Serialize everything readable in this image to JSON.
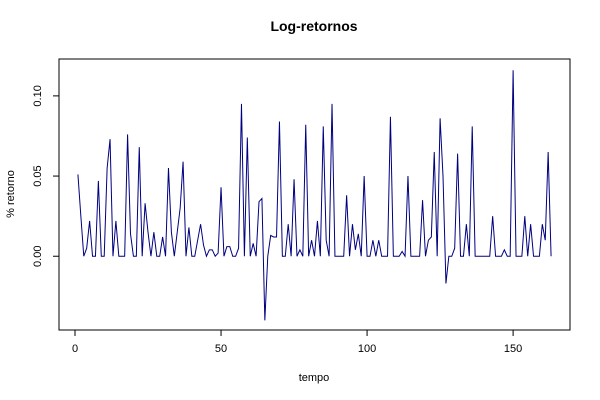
{
  "chart_data": {
    "type": "line",
    "title": "Log-retornos",
    "xlabel": "tempo",
    "ylabel": "% retorno",
    "color": "#000080",
    "x": [
      1,
      2,
      3,
      4,
      5,
      6,
      7,
      8,
      9,
      10,
      11,
      12,
      13,
      14,
      15,
      16,
      17,
      18,
      19,
      20,
      21,
      22,
      23,
      24,
      25,
      26,
      27,
      28,
      29,
      30,
      31,
      32,
      33,
      34,
      35,
      36,
      37,
      38,
      39,
      40,
      41,
      42,
      43,
      44,
      45,
      46,
      47,
      48,
      49,
      50,
      51,
      52,
      53,
      54,
      55,
      56,
      57,
      58,
      59,
      60,
      61,
      62,
      63,
      64,
      65,
      66,
      67,
      68,
      69,
      70,
      71,
      72,
      73,
      74,
      75,
      76,
      77,
      78,
      79,
      80,
      81,
      82,
      83,
      84,
      85,
      86,
      87,
      88,
      89,
      90,
      91,
      92,
      93,
      94,
      95,
      96,
      97,
      98,
      99,
      100,
      101,
      102,
      103,
      104,
      105,
      106,
      107,
      108,
      109,
      110,
      111,
      112,
      113,
      114,
      115,
      116,
      117,
      118,
      119,
      120,
      121,
      122,
      123,
      124,
      125,
      126,
      127,
      128,
      129,
      130,
      131,
      132,
      133,
      134,
      135,
      136,
      137,
      138,
      139,
      140,
      141,
      142,
      143,
      144,
      145,
      146,
      147,
      148,
      149,
      150,
      151,
      152,
      153,
      154,
      155,
      156,
      157,
      158,
      159,
      160,
      161,
      162,
      163
    ],
    "values": [
      0.051,
      0.025,
      0,
      0.005,
      0.022,
      0,
      0,
      0.047,
      0,
      0,
      0.055,
      0.073,
      0,
      0.022,
      0,
      0,
      0,
      0.076,
      0.014,
      0,
      0,
      0.068,
      0,
      0.033,
      0.015,
      0,
      0.015,
      0,
      0,
      0.012,
      0,
      0.055,
      0.015,
      0,
      0.015,
      0.03,
      0.059,
      0,
      0.018,
      0,
      0,
      0.01,
      0.02,
      0.007,
      0,
      0.004,
      0.004,
      0,
      0.002,
      0.043,
      0,
      0.006,
      0.006,
      0,
      0,
      0.005,
      0.095,
      0,
      0.074,
      0,
      0.008,
      0,
      0.034,
      0.036,
      -0.04,
      0,
      0.013,
      0.012,
      0.012,
      0.084,
      0,
      0,
      0.02,
      0,
      0.048,
      0,
      0.004,
      0,
      0.082,
      0,
      0.01,
      0,
      0.022,
      0,
      0.081,
      0.01,
      0,
      0.095,
      0,
      0,
      0,
      0,
      0.038,
      0,
      0.02,
      0.004,
      0.014,
      0,
      0.05,
      0,
      0,
      0.01,
      0,
      0.01,
      0,
      0,
      0,
      0.087,
      0,
      0,
      0,
      0.003,
      0,
      0.05,
      0,
      0,
      0,
      0,
      0.035,
      0,
      0.01,
      0.012,
      0.065,
      0,
      0.086,
      0.05,
      -0.017,
      0,
      0,
      0.005,
      0.064,
      0,
      0,
      0.02,
      0,
      0.081,
      0,
      0,
      0,
      0,
      0,
      0,
      0.025,
      0,
      0,
      0,
      0.004,
      0,
      0,
      0.116,
      0,
      0,
      0,
      0.025,
      0,
      0.02,
      0,
      0,
      0,
      0.02,
      0.01,
      0.065,
      0
    ],
    "xlim": [
      -5.48,
      169.48
    ],
    "ylim": [
      -0.046,
      0.123
    ],
    "xticks": [
      0,
      50,
      100,
      150
    ],
    "yticks": [
      {
        "value": 0,
        "label": "0.00"
      },
      {
        "value": 0.05,
        "label": "0.05"
      },
      {
        "value": 0.1,
        "label": "0.10"
      }
    ]
  }
}
